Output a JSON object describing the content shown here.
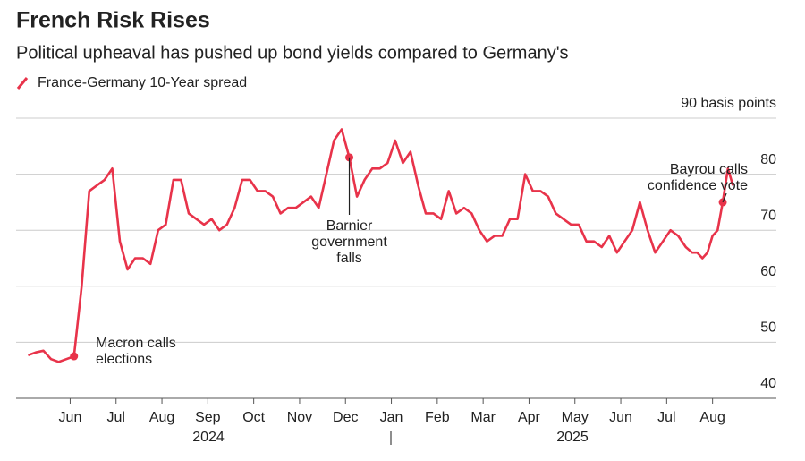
{
  "chart_data": {
    "type": "line",
    "title": "French Risk Rises",
    "subtitle": "Political upheaval has pushed up bond yields compared to Germany's",
    "x": [
      "2024-05",
      "2024-05",
      "2024-05",
      "2024-05",
      "2024-05",
      "2024-05",
      "2024-06",
      "2024-06",
      "2024-06",
      "2024-06",
      "2024-06",
      "2024-06",
      "2024-07",
      "2024-07",
      "2024-07",
      "2024-07",
      "2024-07",
      "2024-07",
      "2024-08",
      "2024-08",
      "2024-08",
      "2024-08",
      "2024-08",
      "2024-08",
      "2024-09",
      "2024-09",
      "2024-09",
      "2024-09",
      "2024-09",
      "2024-09",
      "2024-10",
      "2024-10",
      "2024-10",
      "2024-10",
      "2024-10",
      "2024-10",
      "2024-11",
      "2024-11",
      "2024-11",
      "2024-11",
      "2024-11",
      "2024-11",
      "2024-12",
      "2024-12",
      "2024-12",
      "2024-12",
      "2024-12",
      "2024-12",
      "2025-01",
      "2025-01",
      "2025-01",
      "2025-01",
      "2025-01",
      "2025-01",
      "2025-02",
      "2025-02",
      "2025-02",
      "2025-02",
      "2025-02",
      "2025-02",
      "2025-03",
      "2025-03",
      "2025-03",
      "2025-03",
      "2025-03",
      "2025-03",
      "2025-04",
      "2025-04",
      "2025-04",
      "2025-04",
      "2025-04",
      "2025-04",
      "2025-05",
      "2025-05",
      "2025-05",
      "2025-05",
      "2025-05",
      "2025-05",
      "2025-06",
      "2025-06",
      "2025-06",
      "2025-06",
      "2025-06",
      "2025-06",
      "2025-07",
      "2025-07",
      "2025-07",
      "2025-07",
      "2025-07",
      "2025-07",
      "2025-08",
      "2025-08",
      "2025-08",
      "2025-08",
      "2025-08",
      "2025-08",
      "2025-08",
      "2025-08",
      "2025-08"
    ],
    "series": [
      {
        "name": "France-Germany 10-Year spread",
        "color": "#e8334a",
        "values": [
          null,
          null,
          null,
          47.7,
          48.2,
          48.5,
          47,
          46.5,
          47,
          47.5,
          60,
          77,
          78,
          79,
          81,
          68,
          63,
          65,
          65,
          64,
          70,
          71,
          79,
          79,
          73,
          72,
          71,
          72,
          70,
          71,
          74,
          79,
          79,
          77,
          77,
          76,
          73,
          74,
          74,
          75,
          76,
          74,
          80,
          86,
          88,
          83,
          76,
          79,
          81,
          81,
          82,
          86,
          82,
          84,
          78,
          73,
          73,
          72,
          77,
          73,
          74,
          73,
          70,
          68,
          69,
          69,
          72,
          72,
          80,
          77,
          77,
          76,
          73,
          72,
          71,
          71,
          68,
          68,
          67,
          69,
          66,
          68,
          70,
          75,
          70,
          66,
          68,
          70,
          69,
          67,
          66,
          66,
          65,
          66,
          69,
          70,
          75,
          81,
          78
        ]
      }
    ],
    "xticks": [
      {
        "value": "2024-06",
        "label": "Jun"
      },
      {
        "value": "2024-07",
        "label": "Jul"
      },
      {
        "value": "2024-08",
        "label": "Aug"
      },
      {
        "value": "2024-09",
        "label": "Sep"
      },
      {
        "value": "2024-10",
        "label": "Oct"
      },
      {
        "value": "2024-11",
        "label": "Nov"
      },
      {
        "value": "2024-12",
        "label": "Dec"
      },
      {
        "value": "2025-01",
        "label": "Jan"
      },
      {
        "value": "2025-02",
        "label": "Feb"
      },
      {
        "value": "2025-03",
        "label": "Mar"
      },
      {
        "value": "2025-04",
        "label": "Apr"
      },
      {
        "value": "2025-05",
        "label": "May"
      },
      {
        "value": "2025-06",
        "label": "Jun"
      },
      {
        "value": "2025-07",
        "label": "Jul"
      },
      {
        "value": "2025-08",
        "label": "Aug"
      }
    ],
    "year_labels": [
      "2024",
      "2025"
    ],
    "ylim": [
      40,
      90
    ],
    "yticks": [
      40,
      50,
      60,
      70,
      80,
      {
        "value": 90,
        "label": "90 basis points"
      }
    ],
    "grid": true,
    "annotations": [
      {
        "lines": [
          "Macron calls",
          "elections"
        ]
      },
      {
        "lines": [
          "Barnier",
          "government",
          "falls"
        ]
      },
      {
        "lines": [
          "Bayrou calls",
          "confidence vote"
        ]
      }
    ]
  }
}
